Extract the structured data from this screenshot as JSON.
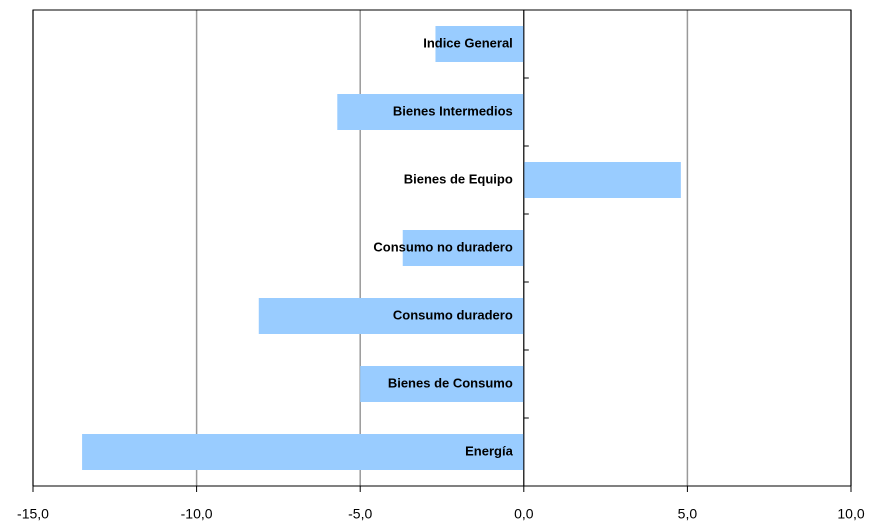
{
  "chart_data": {
    "type": "barh",
    "categories": [
      "Indice General",
      "Bienes Intermedios",
      "Bienes de Equipo",
      "Consumo no duradero",
      "Consumo duradero",
      "Bienes de Consumo",
      "Energía"
    ],
    "values": [
      -2.7,
      -5.7,
      4.8,
      -3.7,
      -8.1,
      -5.0,
      -13.5
    ],
    "color": "#99ccff",
    "xlim": [
      -15,
      10
    ],
    "xticks": [
      {
        "value": -15,
        "label": "-15,0"
      },
      {
        "value": -10,
        "label": "-10,0"
      },
      {
        "value": -5,
        "label": "-5,0"
      },
      {
        "value": 0,
        "label": "0,0"
      },
      {
        "value": 5,
        "label": "5,0"
      },
      {
        "value": 10,
        "label": "10,0"
      }
    ],
    "grid": true
  }
}
